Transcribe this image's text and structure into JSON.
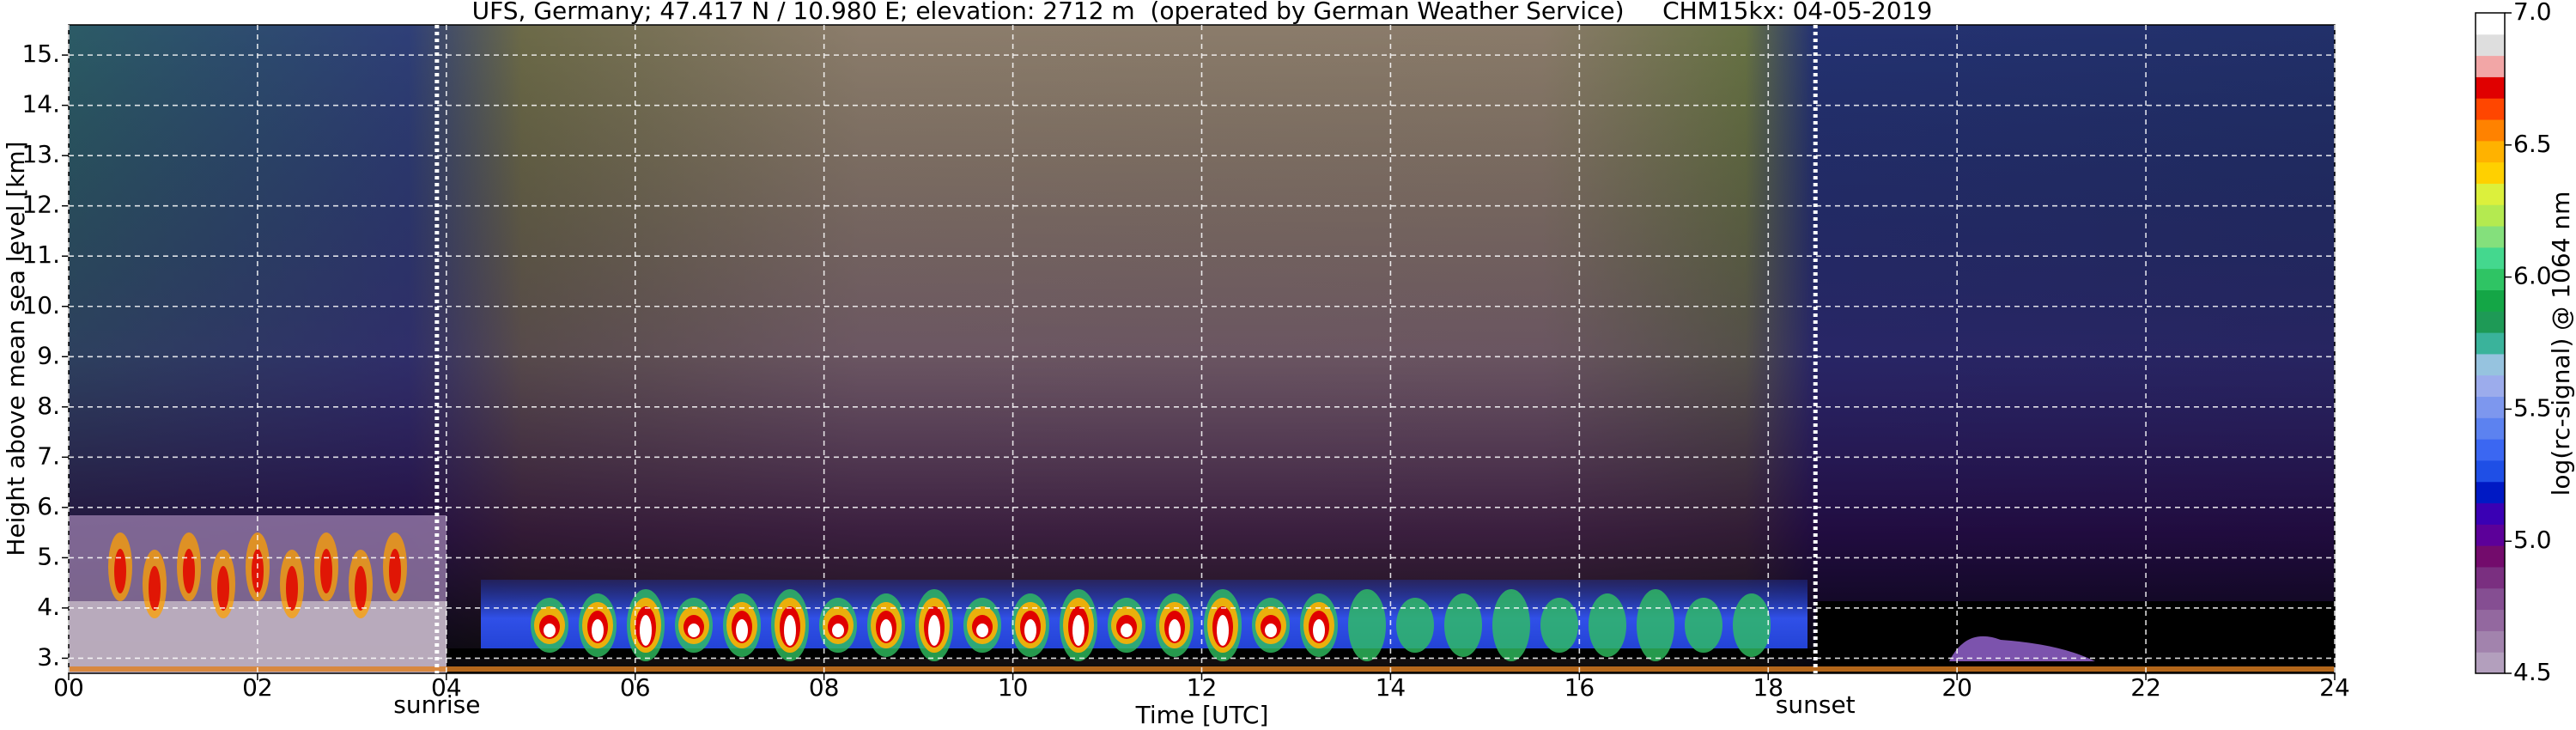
{
  "chart_data": {
    "type": "heatmap",
    "title": "UFS, Germany; 47.417 N / 10.980 E; elevation: 2712 m  (operated by German Weather Service)     CHM15kx: 04-05-2019",
    "x_label": "Time [UTC]",
    "y_label": "Height above mean sea level [km]",
    "xlim": [
      0,
      24
    ],
    "xticks": [
      {
        "value": 0,
        "label": "00"
      },
      {
        "value": 2,
        "label": "02"
      },
      {
        "value": 4,
        "label": "04"
      },
      {
        "value": 6,
        "label": "06"
      },
      {
        "value": 8,
        "label": "08"
      },
      10,
      12,
      14,
      16,
      18,
      20,
      22,
      24
    ],
    "ylim": [
      2.7,
      15.6
    ],
    "yticks": [
      {
        "value": 3,
        "label": "3."
      },
      {
        "value": 4,
        "label": "4."
      },
      {
        "value": 5,
        "label": "5."
      },
      {
        "value": 6,
        "label": "6."
      },
      {
        "value": 7,
        "label": "7."
      },
      {
        "value": 8,
        "label": "8."
      },
      {
        "value": 9,
        "label": "9."
      },
      {
        "value": 10,
        "label": "10."
      },
      {
        "value": 11,
        "label": "11."
      },
      {
        "value": 12,
        "label": "12."
      },
      {
        "value": 13,
        "label": "13."
      },
      {
        "value": 14,
        "label": "14."
      },
      {
        "value": 15,
        "label": "15."
      }
    ],
    "grid": true,
    "annotations": [
      {
        "text": "sunrise",
        "x": 3.9
      },
      {
        "text": "sunset",
        "x": 18.5
      }
    ],
    "colorbar": {
      "label": "log(rc-signal) @ 1064 nm",
      "lim": [
        4.5,
        7.0
      ],
      "ticks": [
        4.5,
        {
          "value": 5,
          "label": "5.0"
        },
        5.5,
        {
          "value": 6,
          "label": "6.0"
        },
        6.5,
        {
          "value": 7,
          "label": "7.0"
        }
      ],
      "colors": [
        "#b39fbd",
        "#a283ad",
        "#93689f",
        "#854e92",
        "#7a2f80",
        "#730b6c",
        "#5c0099",
        "#3a00b4",
        "#0019c4",
        "#1f4fe6",
        "#3b67f2",
        "#5c82f0",
        "#7d97ee",
        "#9cacec",
        "#96c3df",
        "#3ab39b",
        "#1e9a56",
        "#14a646",
        "#2fc464",
        "#44d88e",
        "#84e07c",
        "#b4ea50",
        "#dcf03c",
        "#ffd000",
        "#ffb200",
        "#ff8200",
        "#ff4600",
        "#e00000",
        "#f2a6a6",
        "#dedede",
        "#ffffff"
      ]
    }
  }
}
